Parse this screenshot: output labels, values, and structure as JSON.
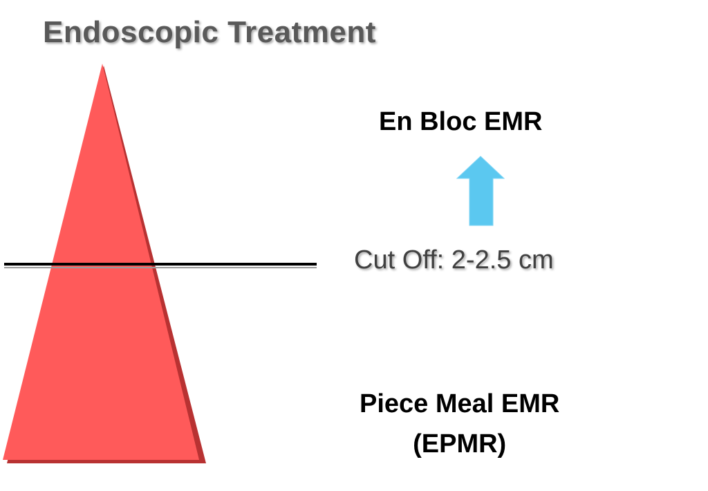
{
  "title": "Endoscopic Treatment",
  "labels": {
    "top": "En Bloc EMR",
    "cutoff": "Cut Off: 2-2.5 cm",
    "bottom_line1": "Piece Meal EMR",
    "bottom_line2": "(EPMR)"
  },
  "colors": {
    "triangle_fill": "#ff5a5a",
    "triangle_edge": "#b83232",
    "arrow": "#5bc8f0",
    "cutoff_line": "#000000",
    "title": "#595959"
  },
  "icons": {
    "arrow": "arrow-up-icon"
  }
}
